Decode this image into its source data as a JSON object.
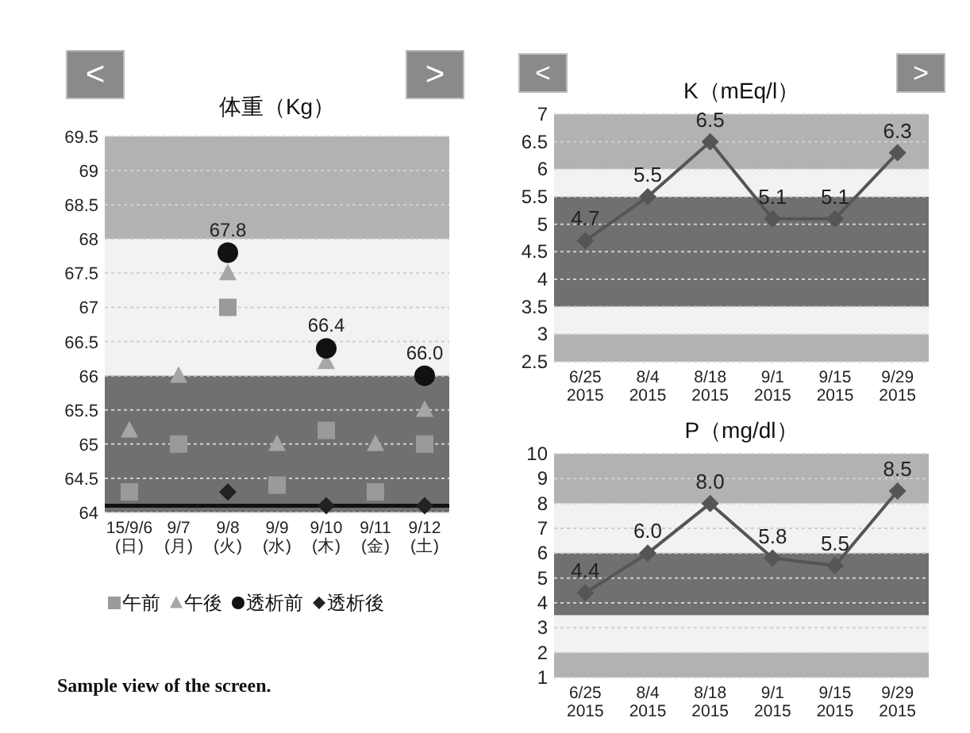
{
  "chart_data": [
    {
      "type": "scatter",
      "title": "体重（Kg）",
      "categories": [
        "15/9/6\n(日)",
        "9/7\n(月)",
        "9/8\n(火)",
        "9/9\n(水)",
        "9/10\n(木)",
        "9/11\n(金)",
        "9/12\n(土)"
      ],
      "series": [
        {
          "name": "午前",
          "color": "#9a9a9a",
          "marker": "square",
          "values": [
            64.3,
            65.0,
            67.0,
            64.4,
            65.2,
            64.3,
            65.0
          ]
        },
        {
          "name": "午後",
          "color": "#a6a6a6",
          "marker": "triangle",
          "values": [
            65.2,
            66.0,
            67.5,
            65.0,
            66.2,
            65.0,
            65.5
          ]
        },
        {
          "name": "透析前",
          "color": "#111111",
          "marker": "circle",
          "values": [
            null,
            null,
            67.8,
            null,
            66.4,
            null,
            66.0
          ],
          "value_labels": [
            null,
            null,
            "67.8",
            null,
            "66.4",
            null,
            "66.0"
          ]
        },
        {
          "name": "透析後",
          "color": "#222222",
          "marker": "diamond",
          "values": [
            null,
            null,
            64.3,
            null,
            64.1,
            null,
            64.1
          ]
        }
      ],
      "ylim": [
        64,
        69.5
      ],
      "yticks": [
        64,
        64.5,
        65,
        65.5,
        66,
        66.5,
        67,
        67.5,
        68,
        68.5,
        69,
        69.5
      ],
      "grid": "y",
      "legend": "bottom",
      "bands": [
        {
          "axis": "y",
          "from": 68,
          "to": 69.5,
          "color": "#b2b2b2"
        },
        {
          "axis": "y",
          "from": 66,
          "to": 68,
          "color": "#f2f2f2"
        },
        {
          "axis": "y",
          "from": 64,
          "to": 66,
          "color": "#707070"
        }
      ],
      "ref_lines": [
        {
          "axis": "y",
          "value": 64.1,
          "color": "#111111"
        }
      ],
      "annotations": [
        "<",
        ">",
        "Sample view of the screen."
      ]
    },
    {
      "type": "line",
      "title": "K（mEq/l）",
      "categories": [
        "6/25\n2015",
        "8/4\n2015",
        "8/18\n2015",
        "9/1\n2015",
        "9/15\n2015",
        "9/29\n2015"
      ],
      "series": [
        {
          "color": "#555555",
          "values": [
            4.7,
            5.5,
            6.5,
            5.1,
            5.1,
            6.3
          ]
        }
      ],
      "marker": "diamond",
      "data_labels": true,
      "ylim": [
        2.5,
        7
      ],
      "yticks": [
        2.5,
        3,
        3.5,
        4,
        4.5,
        5,
        5.5,
        6,
        6.5,
        7
      ],
      "grid": "y",
      "bands": [
        {
          "axis": "y",
          "from": 6,
          "to": 7,
          "color": "#b2b2b2"
        },
        {
          "axis": "y",
          "from": 5.5,
          "to": 6,
          "color": "#f2f2f2"
        },
        {
          "axis": "y",
          "from": 3.5,
          "to": 5.5,
          "color": "#707070"
        },
        {
          "axis": "y",
          "from": 3,
          "to": 3.5,
          "color": "#f2f2f2"
        },
        {
          "axis": "y",
          "from": 2.5,
          "to": 3,
          "color": "#b2b2b2"
        }
      ],
      "annotations": [
        "<",
        ">"
      ]
    },
    {
      "type": "line",
      "title": "P（mg/dl）",
      "categories": [
        "6/25\n2015",
        "8/4\n2015",
        "8/18\n2015",
        "9/1\n2015",
        "9/15\n2015",
        "9/29\n2015"
      ],
      "series": [
        {
          "color": "#555555",
          "values": [
            4.4,
            6.0,
            8.0,
            5.8,
            5.5,
            8.5
          ],
          "value_labels": [
            "4.4",
            "6.0",
            "8.0",
            "5.8",
            "5.5",
            "8.5"
          ]
        }
      ],
      "marker": "diamond",
      "ylim": [
        1,
        10
      ],
      "yticks": [
        1,
        2,
        3,
        4,
        5,
        6,
        7,
        8,
        9,
        10
      ],
      "grid": "y",
      "bands": [
        {
          "axis": "y",
          "from": 8,
          "to": 10,
          "color": "#b2b2b2"
        },
        {
          "axis": "y",
          "from": 6,
          "to": 8,
          "color": "#f2f2f2"
        },
        {
          "axis": "y",
          "from": 3.5,
          "to": 6,
          "color": "#707070"
        },
        {
          "axis": "y",
          "from": 2,
          "to": 3.5,
          "color": "#f2f2f2"
        },
        {
          "axis": "y",
          "from": 1,
          "to": 2,
          "color": "#b2b2b2"
        }
      ]
    }
  ]
}
